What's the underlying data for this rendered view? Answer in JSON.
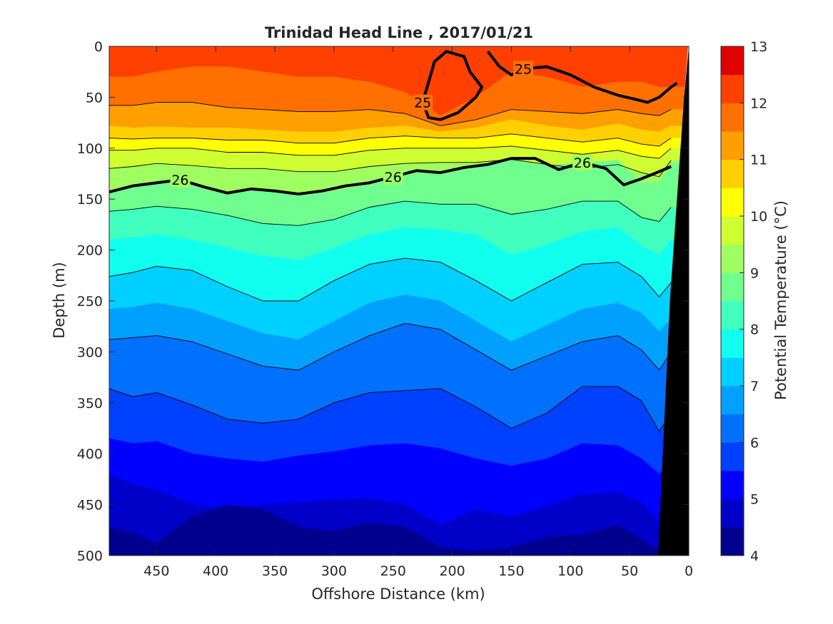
{
  "chart_data": {
    "type": "contour",
    "title": "Trinidad Head Line , 2017/01/21",
    "xlabel": "Offshore Distance (km)",
    "ylabel": "Depth (m)",
    "xlim": [
      490,
      0
    ],
    "ylim": [
      0,
      500
    ],
    "x_reversed": true,
    "y_reversed": true,
    "xticks": [
      450,
      400,
      350,
      300,
      250,
      200,
      150,
      100,
      50,
      0
    ],
    "yticks": [
      0,
      50,
      100,
      150,
      200,
      250,
      300,
      350,
      400,
      450,
      500
    ],
    "colorbar": {
      "label": "Potential Temperature (°C)",
      "range": [
        4,
        13
      ],
      "ticks": [
        4,
        5,
        6,
        7,
        8,
        9,
        10,
        11,
        12,
        13
      ],
      "levels": [
        4,
        4.5,
        5,
        5.5,
        6,
        6.5,
        7,
        7.5,
        8,
        8.5,
        9,
        9.5,
        10,
        10.5,
        11,
        11.5,
        12,
        12.5,
        13
      ],
      "colors": [
        "#00008f",
        "#0000c8",
        "#0000ff",
        "#0040ff",
        "#0070ff",
        "#00a0ff",
        "#00d0ff",
        "#10ffef",
        "#40ffbf",
        "#70ff8f",
        "#a0ff60",
        "#cfff30",
        "#ffff00",
        "#ffd000",
        "#ff9f00",
        "#ff7000",
        "#ff4000",
        "#df0000",
        "#af0000"
      ]
    },
    "isotherms_depth_m": {
      "x_km": [
        490,
        470,
        450,
        420,
        390,
        360,
        330,
        300,
        270,
        240,
        210,
        180,
        150,
        120,
        90,
        60,
        40,
        25,
        15
      ],
      "series": [
        {
          "temp": 12.0,
          "depth": [
            30,
            30,
            25,
            20,
            20,
            25,
            30,
            30,
            35,
            45,
            68,
            50,
            25,
            30,
            40,
            35,
            35,
            40,
            40
          ]
        },
        {
          "temp": 11.5,
          "depth": [
            58,
            58,
            55,
            55,
            60,
            62,
            64,
            64,
            62,
            66,
            78,
            72,
            62,
            64,
            66,
            62,
            66,
            68,
            62
          ]
        },
        {
          "temp": 11.0,
          "depth": [
            78,
            80,
            79,
            80,
            80,
            82,
            84,
            84,
            80,
            78,
            84,
            80,
            72,
            78,
            82,
            76,
            82,
            84,
            78
          ]
        },
        {
          "temp": 10.5,
          "depth": [
            90,
            91,
            90,
            90,
            92,
            92,
            95,
            95,
            90,
            88,
            90,
            90,
            86,
            90,
            94,
            90,
            96,
            98,
            90
          ]
        },
        {
          "temp": 10.0,
          "depth": [
            102,
            102,
            100,
            100,
            104,
            104,
            107,
            107,
            102,
            100,
            100,
            100,
            98,
            102,
            106,
            102,
            108,
            110,
            100
          ]
        },
        {
          "temp": 9.5,
          "depth": [
            120,
            118,
            115,
            117,
            120,
            120,
            123,
            123,
            118,
            115,
            114,
            114,
            111,
            116,
            120,
            116,
            124,
            128,
            112
          ]
        },
        {
          "temp": 9.0,
          "depth": [
            145,
            138,
            132,
            136,
            144,
            141,
            146,
            142,
            135,
            125,
            124,
            118,
            111,
            117,
            114,
            112,
            134,
            134,
            115
          ]
        },
        {
          "temp": 8.5,
          "depth": [
            162,
            160,
            157,
            160,
            166,
            174,
            176,
            170,
            158,
            152,
            155,
            155,
            165,
            160,
            152,
            152,
            168,
            172,
            158
          ]
        },
        {
          "temp": 8.0,
          "depth": [
            190,
            188,
            185,
            190,
            198,
            206,
            210,
            198,
            185,
            178,
            180,
            185,
            205,
            195,
            182,
            178,
            196,
            205,
            190
          ]
        },
        {
          "temp": 7.5,
          "depth": [
            226,
            222,
            216,
            220,
            236,
            250,
            250,
            230,
            214,
            208,
            212,
            230,
            250,
            232,
            214,
            212,
            226,
            246,
            232
          ]
        },
        {
          "temp": 7.0,
          "depth": [
            258,
            256,
            252,
            258,
            270,
            282,
            288,
            270,
            252,
            244,
            250,
            270,
            290,
            274,
            258,
            252,
            262,
            280,
            268
          ]
        },
        {
          "temp": 6.5,
          "depth": [
            288,
            286,
            284,
            290,
            302,
            314,
            318,
            300,
            284,
            272,
            278,
            298,
            318,
            304,
            290,
            284,
            298,
            318,
            300
          ]
        },
        {
          "temp": 6.0,
          "depth": [
            336,
            344,
            340,
            352,
            366,
            370,
            366,
            350,
            340,
            338,
            336,
            354,
            375,
            360,
            334,
            334,
            348,
            378,
            360
          ]
        },
        {
          "temp": 5.5,
          "depth": [
            385,
            390,
            388,
            400,
            405,
            408,
            402,
            398,
            392,
            390,
            395,
            405,
            412,
            405,
            390,
            392,
            405,
            420,
            410
          ]
        },
        {
          "temp": 5.0,
          "depth": [
            420,
            430,
            436,
            450,
            455,
            450,
            448,
            445,
            444,
            450,
            470,
            455,
            462,
            452,
            440,
            438,
            448,
            468,
            460
          ]
        },
        {
          "temp": 4.5,
          "depth": [
            472,
            478,
            488,
            462,
            450,
            455,
            472,
            476,
            468,
            472,
            492,
            495,
            492,
            482,
            480,
            470,
            484,
            496,
            492
          ]
        }
      ]
    },
    "density_contours": [
      {
        "label": "26",
        "x_km": [
          490,
          470,
          450,
          430,
          410,
          390,
          370,
          350,
          330,
          310,
          290,
          270,
          250,
          230,
          210,
          190,
          170,
          150,
          130,
          110,
          90,
          70,
          55,
          40,
          25,
          15
        ],
        "depth": [
          143,
          137,
          134,
          131,
          138,
          144,
          140,
          142,
          145,
          142,
          137,
          134,
          128,
          122,
          124,
          119,
          116,
          110,
          110,
          121,
          114,
          120,
          136,
          130,
          123,
          118
        ]
      },
      {
        "label": "25",
        "x_km": [
          225,
          220,
          210,
          195,
          180,
          175,
          185,
          190,
          205,
          215,
          225
        ],
        "depth": [
          55,
          70,
          72,
          65,
          50,
          40,
          25,
          10,
          5,
          15,
          55
        ]
      },
      {
        "label": "25",
        "x_km": [
          170,
          160,
          150,
          140,
          120,
          100,
          80,
          60,
          45,
          35,
          25,
          15,
          10
        ],
        "depth": [
          5,
          20,
          28,
          22,
          20,
          28,
          40,
          48,
          52,
          55,
          50,
          40,
          36
        ]
      }
    ],
    "bathymetry_km_at_depth": {
      "depth": [
        0,
        50,
        100,
        150,
        200,
        250,
        300,
        350,
        400,
        450,
        500
      ],
      "x_km": [
        0,
        4,
        7,
        10,
        13,
        16,
        18,
        20,
        22,
        24,
        26
      ]
    }
  }
}
